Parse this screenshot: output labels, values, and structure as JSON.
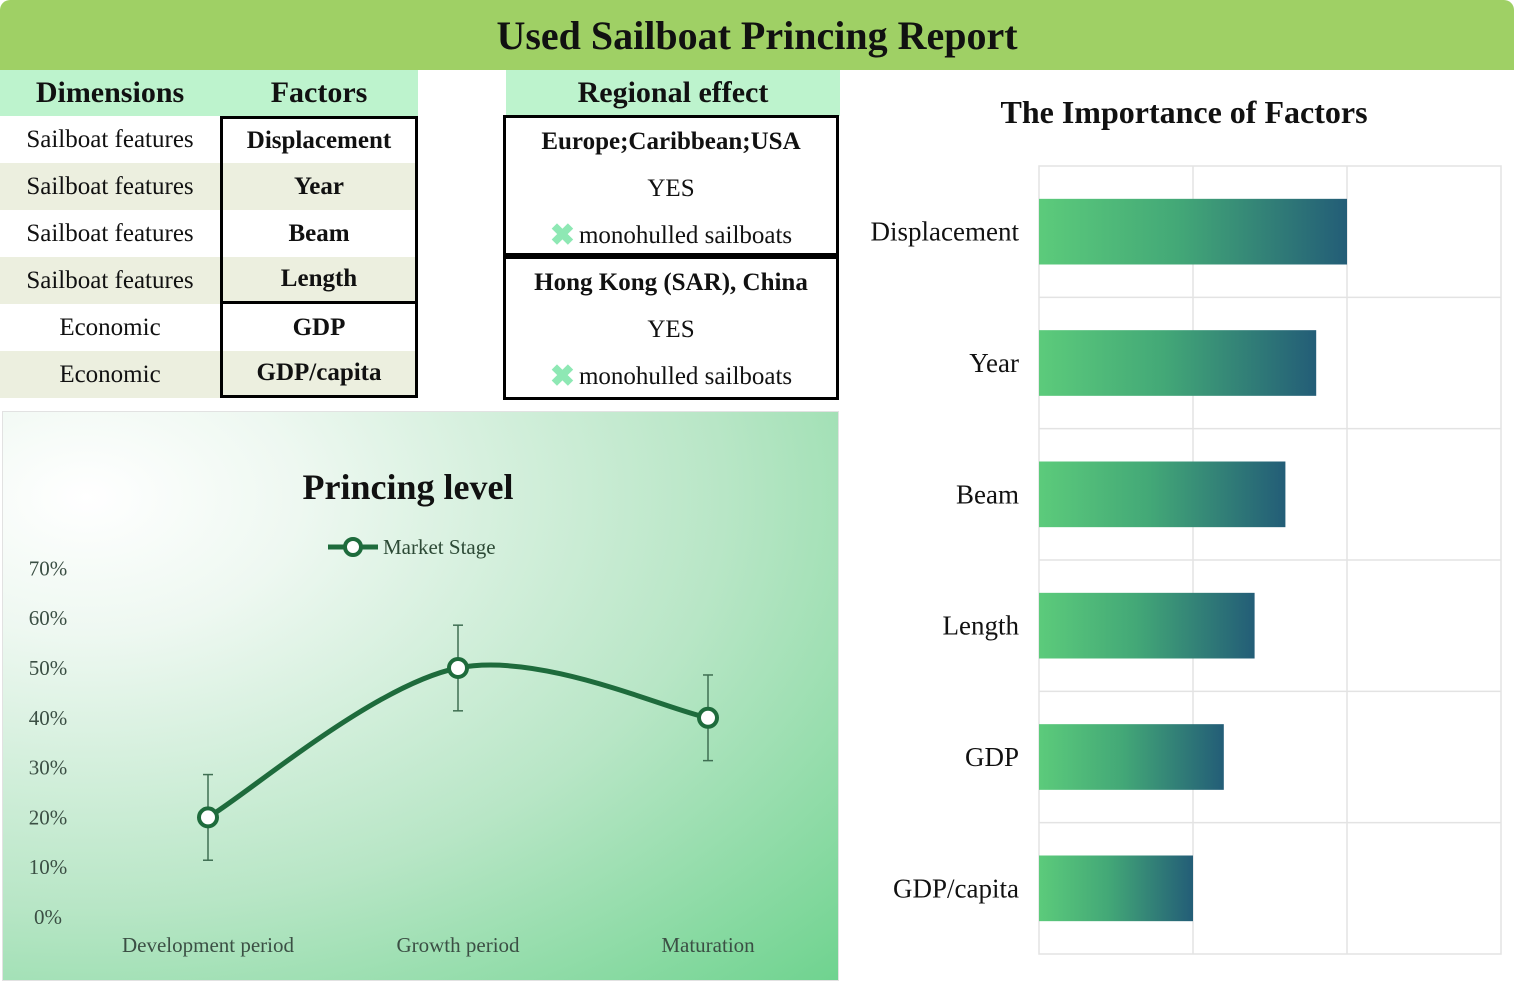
{
  "report": {
    "title": "Used Sailboat Princing Report"
  },
  "factors_table": {
    "headers": {
      "dimensions": "Dimensions",
      "factors": "Factors"
    },
    "rows": [
      {
        "dimension": "Sailboat features",
        "factor": "Displacement"
      },
      {
        "dimension": "Sailboat features",
        "factor": "Year"
      },
      {
        "dimension": "Sailboat features",
        "factor": "Beam"
      },
      {
        "dimension": "Sailboat features",
        "factor": "Length"
      },
      {
        "dimension": "Economic",
        "factor": "GDP"
      },
      {
        "dimension": "Economic",
        "factor": "GDP/capita"
      }
    ]
  },
  "regional_effect": {
    "header": "Regional effect",
    "regions": [
      {
        "name": "Europe;Caribbean;USA",
        "value": "YES",
        "note": "monohulled sailboats"
      },
      {
        "name": "Hong Kong (SAR), China",
        "value": "YES",
        "note": "monohulled sailboats"
      }
    ],
    "note_icon": "x-mark-icon"
  },
  "colors": {
    "title_bar": "#9fd065",
    "header_bg": "#bdf3cd",
    "line": "#1e6b3c",
    "bar_start": "#5ccb7b",
    "bar_end": "#235d77"
  },
  "chart_data": [
    {
      "type": "line",
      "title": "Princing  level",
      "categories": [
        "Development period",
        "Growth period",
        "Maturation"
      ],
      "series": [
        {
          "name": "Market Stage",
          "values": [
            0.2,
            0.5,
            0.4
          ],
          "error": [
            0.086,
            0.086,
            0.086
          ]
        }
      ],
      "ylim": [
        0,
        0.7
      ],
      "yticks": [
        "0%",
        "10%",
        "20%",
        "30%",
        "40%",
        "50%",
        "60%",
        "70%"
      ],
      "smooth": true,
      "legend": "top-center",
      "grid": false
    },
    {
      "type": "bar",
      "orientation": "horizontal",
      "title": "The Importance of Factors",
      "categories": [
        "Displacement",
        "Year",
        "Beam",
        "Length",
        "GDP",
        "GDP/capita"
      ],
      "values": [
        6,
        5.4,
        4.8,
        4.2,
        3.6,
        3.0
      ],
      "xlim": [
        0,
        9
      ],
      "grid": true
    }
  ]
}
